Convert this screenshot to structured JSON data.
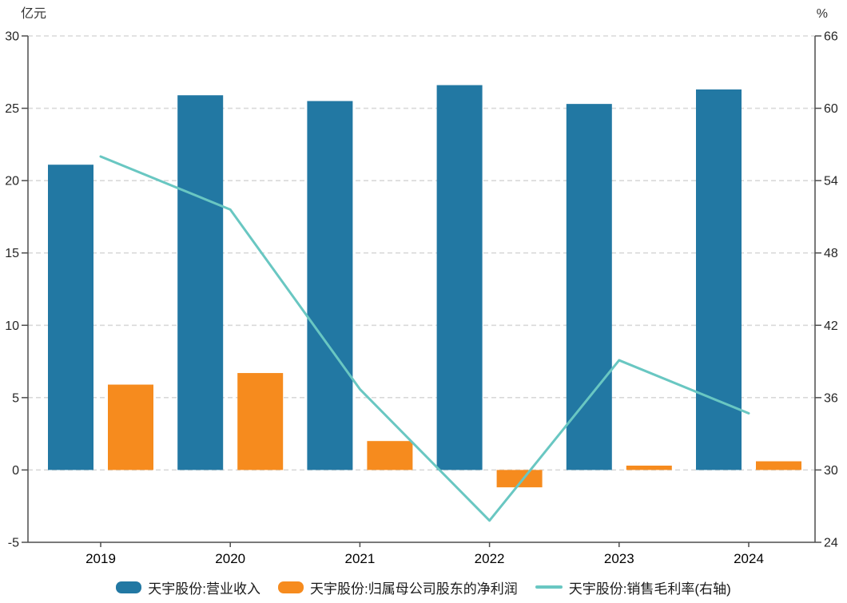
{
  "chart_data": {
    "type": "bar+line combo",
    "categories": [
      "2019",
      "2020",
      "2021",
      "2022",
      "2023",
      "2024"
    ],
    "series": [
      {
        "name": "天宇股份:营业收入",
        "type": "bar",
        "axis": "left",
        "color": "#2278A3",
        "values": [
          21.1,
          25.9,
          25.5,
          26.6,
          25.3,
          26.3
        ]
      },
      {
        "name": "天宇股份:归属母公司股东的净利润",
        "type": "bar",
        "axis": "left",
        "color": "#F68B1E",
        "values": [
          5.9,
          6.7,
          2.0,
          -1.2,
          0.3,
          0.6
        ]
      },
      {
        "name": "天宇股份:销售毛利率(右轴)",
        "type": "line",
        "axis": "right",
        "color": "#69C7C2",
        "values": [
          56.0,
          51.6,
          36.7,
          25.8,
          39.1,
          34.7
        ]
      }
    ],
    "left_axis": {
      "label": "亿元",
      "min": -5,
      "max": 30,
      "ticks": [
        30,
        25,
        20,
        15,
        10,
        5,
        0,
        -5
      ]
    },
    "right_axis": {
      "label": "%",
      "min": 24,
      "max": 66,
      "ticks": [
        66,
        60,
        54,
        48,
        42,
        36,
        30,
        24
      ]
    },
    "grid": true,
    "grid_style": "dashed",
    "legend_position": "bottom"
  },
  "style": {
    "axis_color": "#4d4d4d",
    "grid_color": "#d9d9d9",
    "tick_label_color": "#262626",
    "category_label_color": "#000000",
    "background": "#ffffff"
  }
}
